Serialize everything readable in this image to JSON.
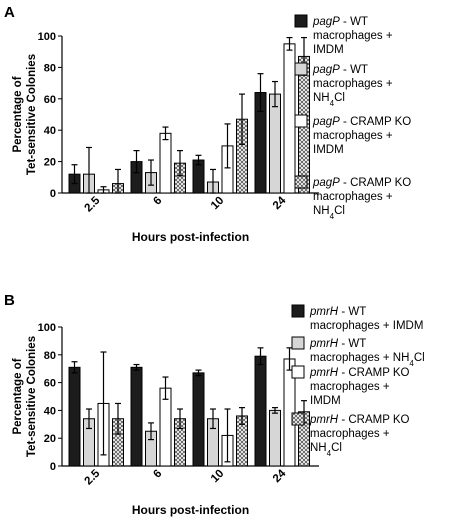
{
  "chart_data": [
    {
      "type": "bar",
      "panel": "A",
      "categories": [
        "2.5",
        "6",
        "10",
        "24"
      ],
      "xlabel": "Hours post-infection",
      "ylabel": [
        "Percentage of",
        "Tet-sensitive Colonies"
      ],
      "ylim": [
        0,
        100
      ],
      "yticks": [
        "0",
        "20",
        "40",
        "60",
        "80",
        "100"
      ],
      "grid": false,
      "legend_position": "right",
      "series": [
        {
          "name": "pagP - WT macrophages + IMDM",
          "gene": "pagP",
          "legend_lines": [
            "- WT",
            "macrophages +",
            "IMDM"
          ],
          "fill": "solid-black",
          "values": [
            12,
            20,
            21,
            64
          ],
          "errors": [
            6,
            7,
            3,
            12
          ]
        },
        {
          "name": "pagP - WT macrophages + NH4Cl",
          "gene": "pagP",
          "legend_lines": [
            "- WT",
            "macrophages +",
            "NH4Cl"
          ],
          "fill": "light-gray",
          "values": [
            12,
            13,
            7,
            63
          ],
          "errors": [
            17,
            8,
            8,
            8
          ]
        },
        {
          "name": "pagP - CRAMP KO macrophages + IMDM",
          "gene": "pagP",
          "legend_lines": [
            "- CRAMP KO",
            "macrophages +",
            "IMDM"
          ],
          "fill": "white",
          "values": [
            2,
            38,
            30,
            95
          ],
          "errors": [
            2,
            4,
            14,
            4
          ]
        },
        {
          "name": "pagP - CRAMP KO macrophages + NH4Cl",
          "gene": "pagP",
          "legend_lines": [
            "- CRAMP KO",
            "macrophages +",
            "NH4Cl"
          ],
          "fill": "crosshatch",
          "values": [
            6,
            19,
            47,
            87
          ],
          "errors": [
            9,
            8,
            16,
            12
          ]
        }
      ]
    },
    {
      "type": "bar",
      "panel": "B",
      "categories": [
        "2.5",
        "6",
        "10",
        "24"
      ],
      "xlabel": "Hours post-infection",
      "ylabel": [
        "Percentage of",
        "Tet-sensitive Colonies"
      ],
      "ylim": [
        0,
        100
      ],
      "yticks": [
        "0",
        "20",
        "40",
        "60",
        "80",
        "100"
      ],
      "grid": false,
      "legend_position": "right",
      "series": [
        {
          "name": "pmrH - WT macrophages + IMDM",
          "gene": "pmrH",
          "legend_lines": [
            "- WT",
            "macrophages + IMDM"
          ],
          "fill": "solid-black",
          "values": [
            71,
            71,
            67,
            79
          ],
          "errors": [
            4,
            2,
            2,
            6
          ]
        },
        {
          "name": "pmrH - WT macrophages + NH4Cl",
          "gene": "pmrH",
          "legend_lines": [
            "- WT",
            "macrophages + NH4Cl"
          ],
          "fill": "light-gray",
          "values": [
            34,
            25,
            34,
            40
          ],
          "errors": [
            7,
            6,
            7,
            2
          ]
        },
        {
          "name": "pmrH - CRAMP KO macrophages + IMDM",
          "gene": "pmrH",
          "legend_lines": [
            "- CRAMP KO",
            "macrophages +",
            "IMDM"
          ],
          "fill": "white",
          "values": [
            45,
            56,
            22,
            77
          ],
          "errors": [
            37,
            8,
            19,
            8
          ]
        },
        {
          "name": "pmrH - CRAMP KO macrophages + NH4Cl",
          "gene": "pmrH",
          "legend_lines": [
            "- CRAMP KO",
            "macrophages +",
            "NH4Cl"
          ],
          "fill": "crosshatch",
          "values": [
            34,
            34,
            36,
            39
          ],
          "errors": [
            11,
            7,
            6,
            8
          ]
        }
      ]
    }
  ],
  "colors": {
    "solid-black": "#1c1c1c",
    "light-gray": "#d6d6d6",
    "white": "#ffffff",
    "crosshatch-lines": "#555555",
    "stroke": "#000000"
  }
}
